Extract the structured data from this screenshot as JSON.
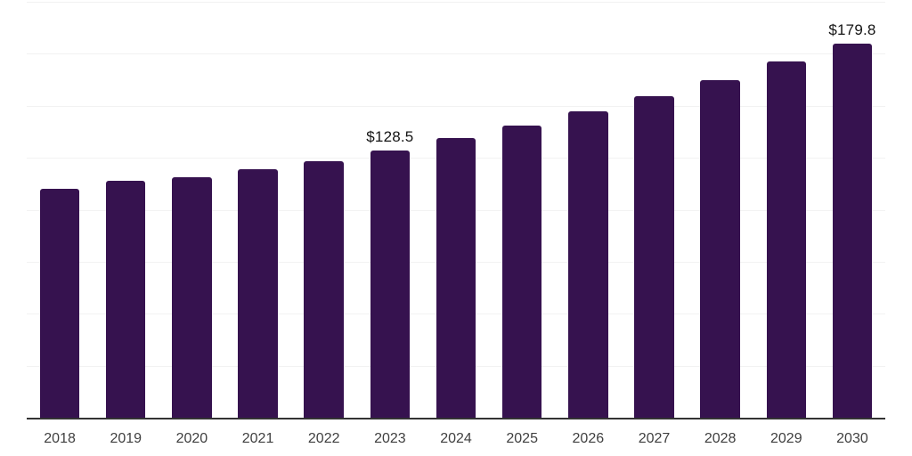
{
  "colors": {
    "background": "#ffffff",
    "bar": "#36124F",
    "axis_line": "#333333",
    "gridline": "#f2f2f2",
    "x_label_text": "#404040",
    "value_label_text": "#141414"
  },
  "chart_data": {
    "type": "bar",
    "title": "",
    "xlabel": "",
    "ylabel": "",
    "categories": [
      "2018",
      "2019",
      "2020",
      "2021",
      "2022",
      "2023",
      "2024",
      "2025",
      "2026",
      "2027",
      "2028",
      "2029",
      "2030"
    ],
    "values": [
      110.2,
      113.8,
      115.5,
      119.4,
      123.4,
      128.5,
      134.5,
      140.4,
      147.4,
      154.5,
      162.4,
      171.2,
      179.8
    ],
    "value_prefix": "$",
    "data_labels": {
      "2023": "$128.5",
      "2030": "$179.8"
    },
    "ylim": [
      0,
      200
    ],
    "gridline_values": [
      25,
      50,
      75,
      100,
      125,
      150,
      175,
      200
    ],
    "grid": "horizontal-only",
    "y_axis_tick_labels_visible": false,
    "legend_position": "none",
    "bar_color": "#36124F"
  }
}
